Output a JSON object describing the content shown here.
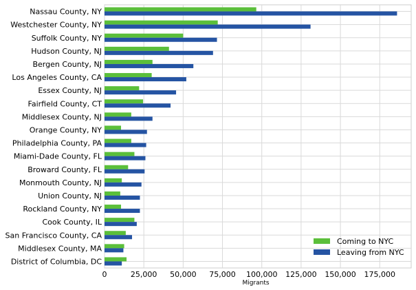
{
  "chart_data": {
    "type": "bar",
    "orientation": "horizontal",
    "categories": [
      "Nassau County, NY",
      "Westchester County, NY",
      "Suffolk County, NY",
      "Hudson County, NJ",
      "Bergen County, NJ",
      "Los Angeles County, CA",
      "Essex County, NJ",
      "Fairfield County, CT",
      "Middlesex County, NJ",
      "Orange County, NY",
      "Philadelphia County, PA",
      "Miami-Dade County, FL",
      "Broward County, FL",
      "Monmouth County, NJ",
      "Union County, NJ",
      "Rockland County, NY",
      "Cook County, IL",
      "San Francisco County, CA",
      "Middlesex County, MA",
      "District of Columbia, DC"
    ],
    "series": [
      {
        "name": "Coming to NYC",
        "color": "#5bbf3a",
        "values": [
          96500,
          72000,
          50000,
          41000,
          30500,
          30000,
          22000,
          24500,
          17000,
          10500,
          17000,
          19000,
          15000,
          11000,
          10000,
          10500,
          19000,
          13500,
          12500,
          14000
        ]
      },
      {
        "name": "Leaving from NYC",
        "color": "#2554a3",
        "values": [
          186000,
          131000,
          71500,
          69000,
          56500,
          52000,
          45500,
          42000,
          30500,
          27000,
          26500,
          26000,
          25500,
          23500,
          22500,
          22500,
          20500,
          17500,
          12000,
          11000
        ]
      }
    ],
    "xlabel": "Migrants",
    "ylabel": "",
    "xlim": [
      0,
      195000
    ],
    "xticks": [
      0,
      25000,
      50000,
      75000,
      100000,
      125000,
      150000,
      175000
    ],
    "xtick_labels": [
      "0",
      "25,000",
      "50,000",
      "75,000",
      "100,000",
      "125,000",
      "150,000",
      "175,000"
    ],
    "grid": true,
    "legend_position": "bottom-right"
  }
}
